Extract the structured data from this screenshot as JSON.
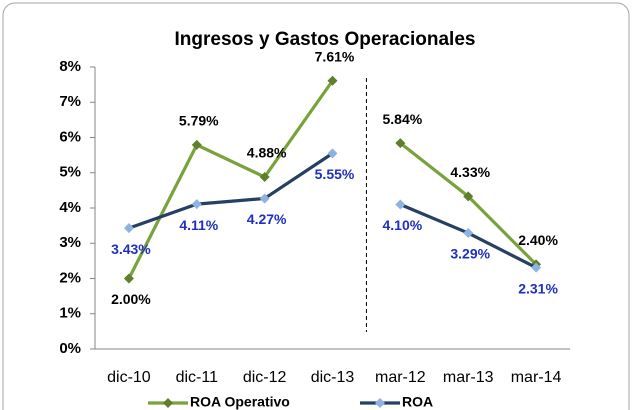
{
  "chart_data": {
    "type": "line",
    "title": "Ingresos y Gastos Operacionales",
    "categories": [
      "dic-10",
      "dic-11",
      "dic-12",
      "dic-13",
      "mar-12",
      "mar-13",
      "mar-14"
    ],
    "series": [
      {
        "name": "ROA Operativo",
        "color": "#77a33a",
        "marker_color": "#5f7f2c",
        "label_color": "#000000",
        "values": [
          2.0,
          5.79,
          4.88,
          7.61,
          5.84,
          4.33,
          2.4
        ],
        "value_labels": [
          "2.00%",
          "5.79%",
          "4.88%",
          "7.61%",
          "5.84%",
          "4.33%",
          "2.40%"
        ]
      },
      {
        "name": "ROA",
        "color": "#254061",
        "marker_color": "#8db3e2",
        "label_color": "#1f2fbf",
        "values": [
          3.43,
          4.11,
          4.27,
          5.55,
          4.1,
          3.29,
          2.31
        ],
        "value_labels": [
          "3.43%",
          "4.11%",
          "4.27%",
          "5.55%",
          "4.10%",
          "3.29%",
          "2.31%"
        ]
      }
    ],
    "ylim": [
      0,
      8
    ],
    "yticks": [
      {
        "value": 0,
        "label": "0%"
      },
      {
        "value": 1,
        "label": "1%"
      },
      {
        "value": 2,
        "label": "2%"
      },
      {
        "value": 3,
        "label": "3%"
      },
      {
        "value": 4,
        "label": "4%"
      },
      {
        "value": 5,
        "label": "5%"
      },
      {
        "value": 6,
        "label": "6%"
      },
      {
        "value": 7,
        "label": "7%"
      },
      {
        "value": 8,
        "label": "8%"
      }
    ],
    "grid": false,
    "divider_after": 3,
    "legend": "bottom"
  }
}
